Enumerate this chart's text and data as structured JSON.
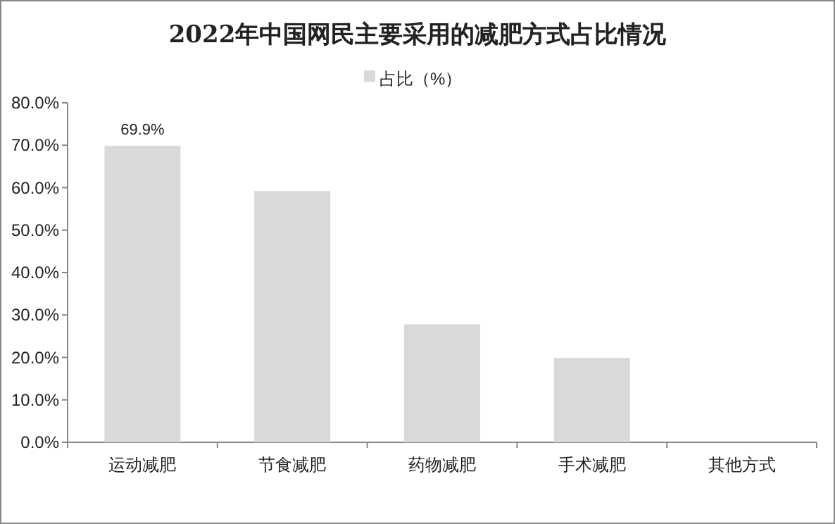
{
  "chart_data": {
    "type": "bar",
    "title": "2022年中国网民主要采用的减肥方式占比情况",
    "categories": [
      "运动减肥",
      "节食减肥",
      "药物减肥",
      "手术减肥",
      "其他方式"
    ],
    "series": [
      {
        "name": "占比（%）",
        "color": "#d9d9d9",
        "values": [
          69.9,
          59.2,
          27.8,
          19.9,
          0
        ]
      }
    ],
    "value_labels": [
      "69.9%",
      null,
      null,
      null,
      null
    ],
    "ylim": [
      0,
      80
    ],
    "yticks": [
      {
        "value": 0,
        "label": "0.0%"
      },
      {
        "value": 10,
        "label": "10.0%"
      },
      {
        "value": 20,
        "label": "20.0%"
      },
      {
        "value": 30,
        "label": "30.0%"
      },
      {
        "value": 40,
        "label": "40.0%"
      },
      {
        "value": 50,
        "label": "50.0%"
      },
      {
        "value": 60,
        "label": "60.0%"
      },
      {
        "value": 70,
        "label": "70.0%"
      },
      {
        "value": 80,
        "label": "80.0%"
      }
    ],
    "legend": "top"
  }
}
